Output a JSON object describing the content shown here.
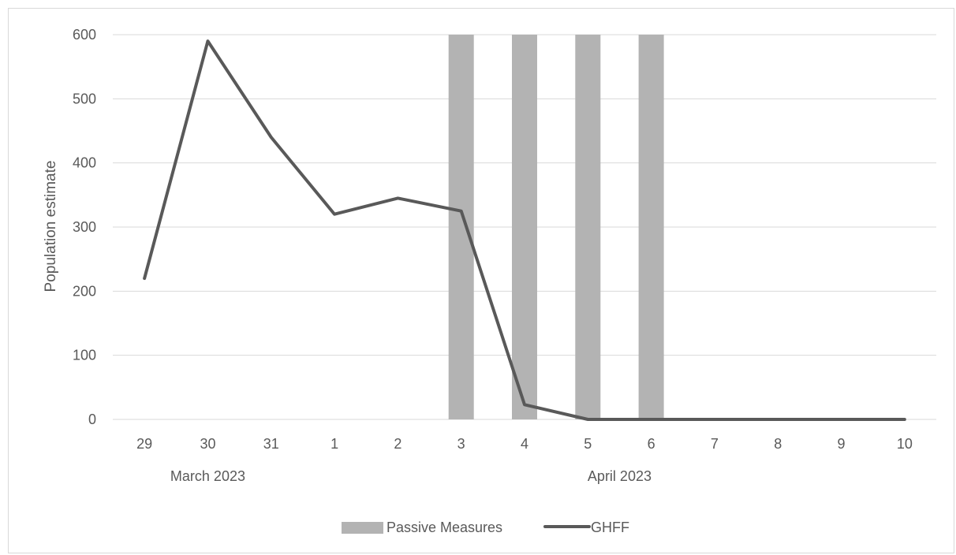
{
  "chart_data": {
    "type": "line",
    "title": "",
    "ylabel": "Population estimate",
    "xlabel": "",
    "ylim": [
      0,
      600
    ],
    "yticks": [
      0,
      100,
      200,
      300,
      400,
      500,
      600
    ],
    "categories": [
      "29",
      "30",
      "31",
      "1",
      "2",
      "3",
      "4",
      "5",
      "6",
      "7",
      "8",
      "9",
      "10"
    ],
    "dates": [
      "2023-03-29",
      "2023-03-30",
      "2023-03-31",
      "2023-04-01",
      "2023-04-02",
      "2023-04-03",
      "2023-04-04",
      "2023-04-05",
      "2023-04-06",
      "2023-04-07",
      "2023-04-08",
      "2023-04-09",
      "2023-04-10"
    ],
    "month_groups": [
      {
        "label": "March 2023",
        "categories": [
          "29",
          "30",
          "31"
        ]
      },
      {
        "label": "April 2023",
        "categories": [
          "1",
          "2",
          "3",
          "4",
          "5",
          "6",
          "7",
          "8",
          "9",
          "10"
        ]
      }
    ],
    "grid": true,
    "legend_position": "bottom",
    "series": [
      {
        "name": "Passive Measures",
        "type": "bar",
        "color": "#b3b3b3",
        "values": [
          null,
          null,
          null,
          null,
          null,
          600,
          600,
          600,
          600,
          null,
          null,
          null,
          null
        ]
      },
      {
        "name": "GHFF",
        "type": "line",
        "color": "#595959",
        "values": [
          220,
          590,
          440,
          320,
          345,
          325,
          23,
          0,
          0,
          0,
          0,
          0,
          0
        ]
      }
    ]
  }
}
